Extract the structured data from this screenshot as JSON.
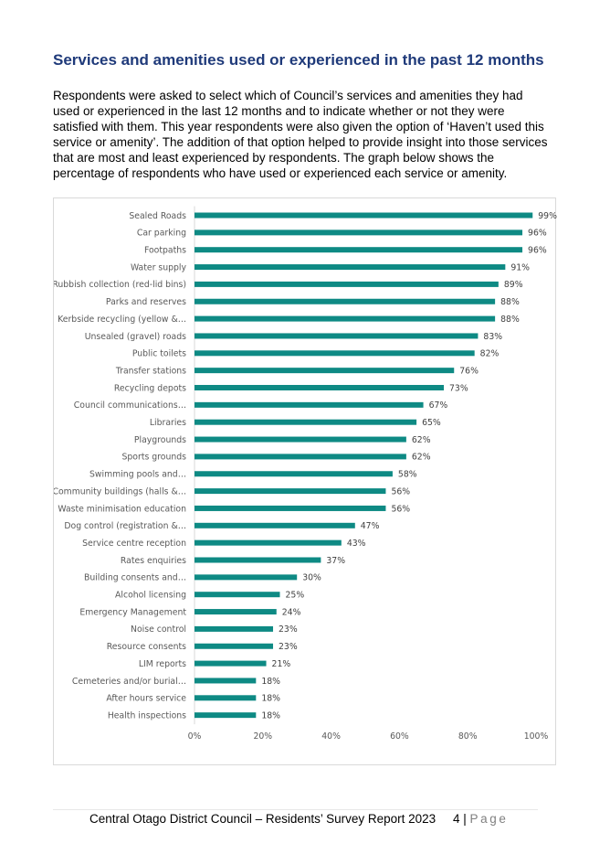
{
  "heading": "Services and amenities used or experienced in the past 12 months",
  "intro": "Respondents were asked to select which of Council’s services and amenities they had used or experienced in the last 12 months and to indicate whether or not they were satisfied with them.  This year respondents were also given the option of ‘Haven’t used this service or amenity’.  The addition of that option helped to provide insight into those services that are most and least experienced by respondents.  The graph below shows the percentage of respondents who have used or experienced each service or amenity.",
  "chart_data": {
    "type": "bar",
    "orientation": "horizontal",
    "categories": [
      "Sealed Roads",
      "Car parking",
      "Footpaths",
      "Water supply",
      "Rubbish collection (red-lid bins)",
      "Parks and reserves",
      "Kerbside recycling (yellow &…",
      "Unsealed (gravel) roads",
      "Public toilets",
      "Transfer stations",
      "Recycling depots",
      "Council communications…",
      "Libraries",
      "Playgrounds",
      "Sports grounds",
      "Swimming pools and…",
      "Community buildings (halls &…",
      "Waste minimisation education",
      "Dog control (registration &…",
      "Service centre reception",
      "Rates enquiries",
      "Building consents and…",
      "Alcohol licensing",
      "Emergency Management",
      "Noise control",
      "Resource consents",
      "LIM reports",
      "Cemeteries and/or burial…",
      "After hours service",
      "Health inspections"
    ],
    "values": [
      99,
      96,
      96,
      91,
      89,
      88,
      88,
      83,
      82,
      76,
      73,
      67,
      65,
      62,
      62,
      58,
      56,
      56,
      47,
      43,
      37,
      30,
      25,
      24,
      23,
      23,
      21,
      18,
      18,
      18
    ],
    "value_labels": [
      "99%",
      "96%",
      "96%",
      "91%",
      "89%",
      "88%",
      "88%",
      "83%",
      "82%",
      "76%",
      "73%",
      "67%",
      "65%",
      "62%",
      "62%",
      "58%",
      "56%",
      "56%",
      "47%",
      "43%",
      "37%",
      "30%",
      "25%",
      "24%",
      "23%",
      "23%",
      "21%",
      "18%",
      "18%",
      "18%"
    ],
    "xlim": [
      0,
      100
    ],
    "x_ticks": [
      0,
      20,
      40,
      60,
      80,
      100
    ],
    "x_tick_labels": [
      "0%",
      "20%",
      "40%",
      "60%",
      "80%",
      "100%"
    ],
    "bar_color": "#0e8a84",
    "grid": false,
    "legend": "none"
  },
  "footer": {
    "text": "Central Otago District Council – Residents’ Survey Report 2023",
    "page_number": "4",
    "separator": "|",
    "page_word": "Page"
  }
}
